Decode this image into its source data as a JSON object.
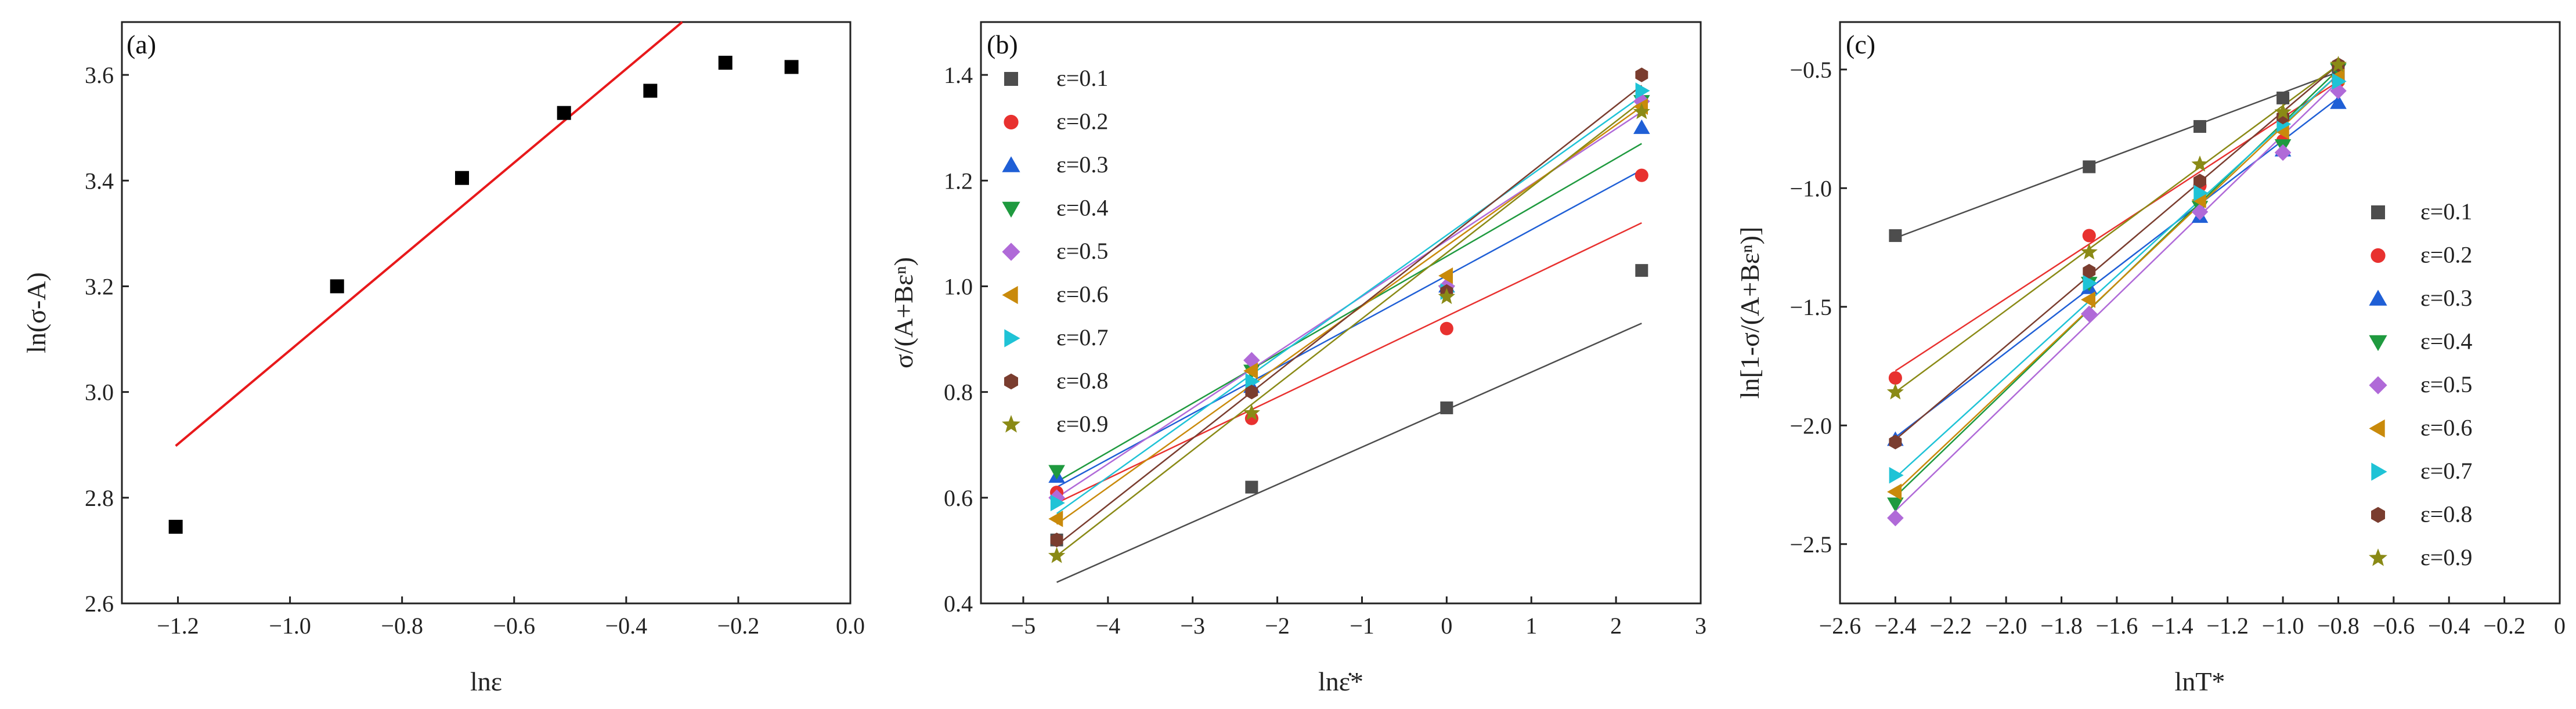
{
  "chart_data": [
    {
      "type": "scatter",
      "panel_label": "(a)",
      "xlabel": "lnε",
      "ylabel": "ln(σ-A)",
      "xlim": [
        -1.3,
        0.0
      ],
      "ylim": [
        2.6,
        3.7
      ],
      "xticks": [
        "-1.2",
        "-1.0",
        "-0.8",
        "-0.6",
        "-0.4",
        "-0.2",
        "0.0"
      ],
      "yticks": [
        "2.6",
        "2.8",
        "3.0",
        "3.2",
        "3.4",
        "3.6"
      ],
      "points": {
        "x": [
          -1.204,
          -0.916,
          -0.693,
          -0.511,
          -0.357,
          -0.223,
          -0.105
        ],
        "y": [
          2.745,
          3.2,
          3.405,
          3.528,
          3.57,
          3.623,
          3.615
        ]
      },
      "fit_line": {
        "x": [
          -1.204,
          -0.3
        ],
        "y": [
          2.898,
          3.7
        ],
        "color": "#e8191b"
      },
      "marker_color": "#000000"
    },
    {
      "type": "scatter",
      "panel_label": "(b)",
      "xlabel": "lnε̇*",
      "ylabel": "σ/(A+Bεⁿ)",
      "xlim": [
        -5.5,
        3.0
      ],
      "ylim": [
        0.4,
        1.5
      ],
      "xticks": [
        "-5",
        "-4",
        "-3",
        "-2",
        "-1",
        "0",
        "1",
        "2",
        "3"
      ],
      "yticks": [
        "0.4",
        "0.6",
        "0.8",
        "1.0",
        "1.2",
        "1.4"
      ],
      "x": [
        -4.605,
        -2.303,
        0.0,
        2.303
      ],
      "series": [
        {
          "name": "ε=0.1",
          "marker": "square",
          "color": "#4d4d4d",
          "values": [
            0.52,
            0.62,
            0.77,
            1.03
          ],
          "fit": [
            0.44,
            0.93
          ]
        },
        {
          "name": "ε=0.2",
          "marker": "circle",
          "color": "#e8312f",
          "values": [
            0.61,
            0.75,
            0.92,
            1.21
          ],
          "fit": [
            0.59,
            1.12
          ]
        },
        {
          "name": "ε=0.3",
          "marker": "triangle",
          "color": "#1f5fd6",
          "values": [
            0.64,
            0.81,
            1.0,
            1.3
          ],
          "fit": [
            0.62,
            1.22
          ]
        },
        {
          "name": "ε=0.4",
          "marker": "tri-down",
          "color": "#1f9a3f",
          "values": [
            0.65,
            0.84,
            0.99,
            1.35
          ],
          "fit": [
            0.63,
            1.27
          ]
        },
        {
          "name": "ε=0.5",
          "marker": "diamond",
          "color": "#b06ad8",
          "values": [
            0.6,
            0.86,
            1.0,
            1.35
          ],
          "fit": [
            0.6,
            1.33
          ]
        },
        {
          "name": "ε=0.6",
          "marker": "tri-left",
          "color": "#c98a0b",
          "values": [
            0.56,
            0.84,
            1.02,
            1.34
          ],
          "fit": [
            0.55,
            1.34
          ]
        },
        {
          "name": "ε=0.7",
          "marker": "tri-right",
          "color": "#1fc3d6",
          "values": [
            0.59,
            0.82,
            0.99,
            1.37
          ],
          "fit": [
            0.57,
            1.36
          ]
        },
        {
          "name": "ε=0.8",
          "marker": "hexagon",
          "color": "#7a3d2f",
          "values": [
            0.52,
            0.8,
            0.99,
            1.4
          ],
          "fit": [
            0.51,
            1.38
          ]
        },
        {
          "name": "ε=0.9",
          "marker": "star",
          "color": "#8a8a16",
          "values": [
            0.49,
            0.76,
            0.98,
            1.33
          ],
          "fit": [
            0.49,
            1.35
          ]
        }
      ],
      "legend_position": "top-left"
    },
    {
      "type": "scatter",
      "panel_label": "(c)",
      "xlabel": "lnT*",
      "ylabel": "ln[1-σ/(A+Bεⁿ)]",
      "xlim": [
        -2.6,
        0.0
      ],
      "ylim": [
        -2.75,
        -0.3
      ],
      "xticks": [
        "-2.6",
        "-2.4",
        "-2.2",
        "-2.0",
        "-1.8",
        "-1.6",
        "-1.4",
        "-1.2",
        "-1.0",
        "-0.8",
        "-0.6",
        "-0.4",
        "-0.2",
        "0"
      ],
      "yticks": [
        "-2.5",
        "-2.0",
        "-1.5",
        "-1.0",
        "-0.5"
      ],
      "x": [
        -2.4,
        -1.7,
        -1.3,
        -1.0,
        -0.8
      ],
      "series": [
        {
          "name": "ε=0.1",
          "marker": "square",
          "color": "#4d4d4d",
          "values": [
            -1.2,
            -0.91,
            -0.74,
            -0.62,
            -0.52
          ],
          "fit": [
            -1.21,
            -0.51
          ]
        },
        {
          "name": "ε=0.2",
          "marker": "circle",
          "color": "#e8312f",
          "values": [
            -1.8,
            -1.2,
            -0.99,
            -0.8,
            -0.55
          ],
          "fit": [
            -1.77,
            -0.55
          ]
        },
        {
          "name": "ε=0.3",
          "marker": "triangle",
          "color": "#1f5fd6",
          "values": [
            -2.06,
            -1.42,
            -1.12,
            -0.84,
            -0.64
          ],
          "fit": [
            -2.05,
            -0.62
          ]
        },
        {
          "name": "ε=0.4",
          "marker": "tri-down",
          "color": "#1f9a3f",
          "values": [
            -2.33,
            -1.4,
            -1.08,
            -0.82,
            -0.5
          ],
          "fit": [
            -2.3,
            -0.5
          ]
        },
        {
          "name": "ε=0.5",
          "marker": "diamond",
          "color": "#b06ad8",
          "values": [
            -2.39,
            -1.53,
            -1.1,
            -0.85,
            -0.59
          ],
          "fit": [
            -2.36,
            -0.55
          ]
        },
        {
          "name": "ε=0.6",
          "marker": "tri-left",
          "color": "#c98a0b",
          "values": [
            -2.28,
            -1.47,
            -1.05,
            -0.76,
            -0.53
          ],
          "fit": [
            -2.28,
            -0.52
          ]
        },
        {
          "name": "ε=0.7",
          "marker": "tri-right",
          "color": "#1fc3d6",
          "values": [
            -2.21,
            -1.4,
            -1.02,
            -0.73,
            -0.55
          ],
          "fit": [
            -2.22,
            -0.52
          ]
        },
        {
          "name": "ε=0.8",
          "marker": "hexagon",
          "color": "#7a3d2f",
          "values": [
            -2.07,
            -1.35,
            -0.97,
            -0.7,
            -0.48
          ],
          "fit": [
            -2.06,
            -0.48
          ]
        },
        {
          "name": "ε=0.9",
          "marker": "star",
          "color": "#8a8a16",
          "values": [
            -1.86,
            -1.27,
            -0.9,
            -0.68,
            -0.48
          ],
          "fit": [
            -1.86,
            -0.48
          ]
        }
      ],
      "legend_position": "right"
    }
  ]
}
